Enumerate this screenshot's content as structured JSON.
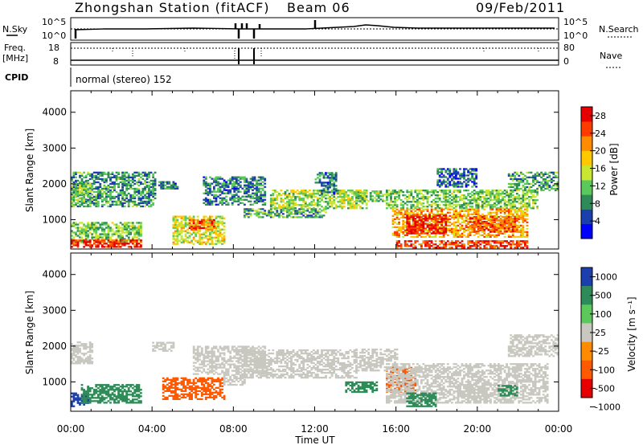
{
  "header": {
    "station_title": "Zhongshan Station (fitACF)",
    "beam_label": "Beam 06",
    "date_label": "09/Feb/2011"
  },
  "status_strip": {
    "nsky_label": "N.Sky",
    "nsearch_label": "N.Search",
    "nsky_ticks": [
      "10^5",
      "10^0"
    ],
    "nsearch_ticks": [
      "10^5",
      "10^0"
    ],
    "freq_label_line1": "Freq.",
    "freq_label_line2": "[MHz]",
    "freq_ticks": [
      "18",
      "8"
    ],
    "nave_label": "Nave",
    "nave_ticks": [
      "80",
      "0"
    ],
    "cpid_label": "CPID",
    "cpid_text": "normal (stereo) 152"
  },
  "power_panel": {
    "ylabel": "Slant Range [km]",
    "ytick_labels": [
      "4000",
      "3000",
      "2000",
      "1000"
    ],
    "colorbar_label": "Power [dB]",
    "colorbar_ticks": [
      "28",
      "24",
      "20",
      "16",
      "12",
      "8",
      "4"
    ]
  },
  "velocity_panel": {
    "ylabel": "Slant Range [km]",
    "ytick_labels": [
      "4000",
      "3000",
      "2000",
      "1000"
    ],
    "colorbar_label": "Velocity [m s⁻¹]",
    "colorbar_ticks": [
      "1000",
      "500",
      "100",
      "25",
      "-25",
      "-100",
      "-500",
      "-1000"
    ]
  },
  "xaxis": {
    "label": "Time UT",
    "tick_labels": [
      "00:00",
      "04:00",
      "08:00",
      "12:00",
      "16:00",
      "20:00",
      "00:00"
    ]
  },
  "colors": {
    "power_scale": [
      "#0000ff",
      "#1c3fae",
      "#2e8b57",
      "#5ac85a",
      "#c8e632",
      "#ffc800",
      "#ff8c00",
      "#ff3c00",
      "#e60000"
    ],
    "velocity_scale": [
      "#1c3fae",
      "#2e8b57",
      "#5ac85a",
      "#c8c8c0",
      "#ff8c00",
      "#ff5a00",
      "#e60000"
    ]
  },
  "chart_data": [
    {
      "type": "heatmap",
      "panel": "power",
      "ylabel": "Slant Range [km]",
      "xlabel": "Time UT",
      "xlim_hours": [
        0,
        24
      ],
      "ylim_km": [
        180,
        4600
      ],
      "colorbar": {
        "label": "Power [dB]",
        "range": [
          0,
          30
        ]
      },
      "regions": [
        {
          "t0": 0.0,
          "t1": 4.2,
          "r0": 1350,
          "r1": 2300,
          "value": 9
        },
        {
          "t0": 0.0,
          "t1": 1.0,
          "r0": 1500,
          "r1": 2000,
          "value": 12
        },
        {
          "t0": 0.0,
          "t1": 3.5,
          "r0": 350,
          "r1": 900,
          "value": 12
        },
        {
          "t0": 0.0,
          "t1": 3.5,
          "r0": 220,
          "r1": 420,
          "value": 27
        },
        {
          "t0": 4.3,
          "t1": 5.2,
          "r0": 1850,
          "r1": 2050,
          "value": 8
        },
        {
          "t0": 5.0,
          "t1": 7.5,
          "r0": 300,
          "r1": 1100,
          "value": 16
        },
        {
          "t0": 5.8,
          "t1": 7.0,
          "r0": 700,
          "r1": 1000,
          "value": 24
        },
        {
          "t0": 6.5,
          "t1": 9.5,
          "r0": 1400,
          "r1": 2200,
          "value": 8
        },
        {
          "t0": 8.5,
          "t1": 12.5,
          "r0": 1050,
          "r1": 1300,
          "value": 10
        },
        {
          "t0": 9.8,
          "t1": 14.5,
          "r0": 1300,
          "r1": 1800,
          "value": 14
        },
        {
          "t0": 12.0,
          "t1": 13.0,
          "r0": 1700,
          "r1": 2300,
          "value": 8
        },
        {
          "t0": 14.0,
          "t1": 15.5,
          "r0": 1500,
          "r1": 1800,
          "value": 12
        },
        {
          "t0": 15.5,
          "t1": 23.0,
          "r0": 1300,
          "r1": 1800,
          "value": 12
        },
        {
          "t0": 15.8,
          "t1": 22.5,
          "r0": 500,
          "r1": 1300,
          "value": 20
        },
        {
          "t0": 16.5,
          "t1": 18.5,
          "r0": 600,
          "r1": 1100,
          "value": 28
        },
        {
          "t0": 19.5,
          "t1": 22.0,
          "r0": 650,
          "r1": 1100,
          "value": 24
        },
        {
          "t0": 16.0,
          "t1": 22.5,
          "r0": 200,
          "r1": 400,
          "value": 26
        },
        {
          "t0": 21.5,
          "t1": 24.0,
          "r0": 1800,
          "r1": 2300,
          "value": 10
        },
        {
          "t0": 18.0,
          "t1": 20.0,
          "r0": 1900,
          "r1": 2400,
          "value": 6
        }
      ]
    },
    {
      "type": "heatmap",
      "panel": "velocity",
      "ylabel": "Slant Range [km]",
      "xlabel": "Time UT",
      "xlim_hours": [
        0,
        24
      ],
      "ylim_km": [
        180,
        4600
      ],
      "colorbar": {
        "label": "Velocity [m s⁻¹]",
        "range": [
          -1000,
          1000
        ]
      },
      "regions": [
        {
          "t0": 0.0,
          "t1": 1.0,
          "r0": 1500,
          "r1": 2100,
          "value": 0
        },
        {
          "t0": 0.0,
          "t1": 0.8,
          "r0": 300,
          "r1": 700,
          "value": 800
        },
        {
          "t0": 0.5,
          "t1": 3.5,
          "r0": 400,
          "r1": 900,
          "value": 200
        },
        {
          "t0": 4.0,
          "t1": 5.0,
          "r0": 1850,
          "r1": 2100,
          "value": 0
        },
        {
          "t0": 4.5,
          "t1": 7.5,
          "r0": 500,
          "r1": 1100,
          "value": -300
        },
        {
          "t0": 6.0,
          "t1": 9.5,
          "r0": 1200,
          "r1": 2000,
          "value": 0
        },
        {
          "t0": 7.5,
          "t1": 8.5,
          "r0": 900,
          "r1": 1200,
          "value": 0
        },
        {
          "t0": 8.5,
          "t1": 14.0,
          "r0": 1100,
          "r1": 1900,
          "value": 0
        },
        {
          "t0": 13.5,
          "t1": 15.0,
          "r0": 700,
          "r1": 1000,
          "value": 150
        },
        {
          "t0": 14.0,
          "t1": 16.0,
          "r0": 1300,
          "r1": 1900,
          "value": 0
        },
        {
          "t0": 15.5,
          "t1": 17.0,
          "r0": 700,
          "r1": 1400,
          "value": -150
        },
        {
          "t0": 15.5,
          "t1": 23.5,
          "r0": 400,
          "r1": 1500,
          "value": 0
        },
        {
          "t0": 16.5,
          "t1": 18.0,
          "r0": 300,
          "r1": 700,
          "value": 150
        },
        {
          "t0": 19.0,
          "t1": 20.5,
          "r0": 400,
          "r1": 900,
          "value": 0
        },
        {
          "t0": 21.5,
          "t1": 24.0,
          "r0": 1700,
          "r1": 2300,
          "value": 0
        },
        {
          "t0": 21.0,
          "t1": 22.0,
          "r0": 600,
          "r1": 900,
          "value": 200
        }
      ]
    }
  ]
}
